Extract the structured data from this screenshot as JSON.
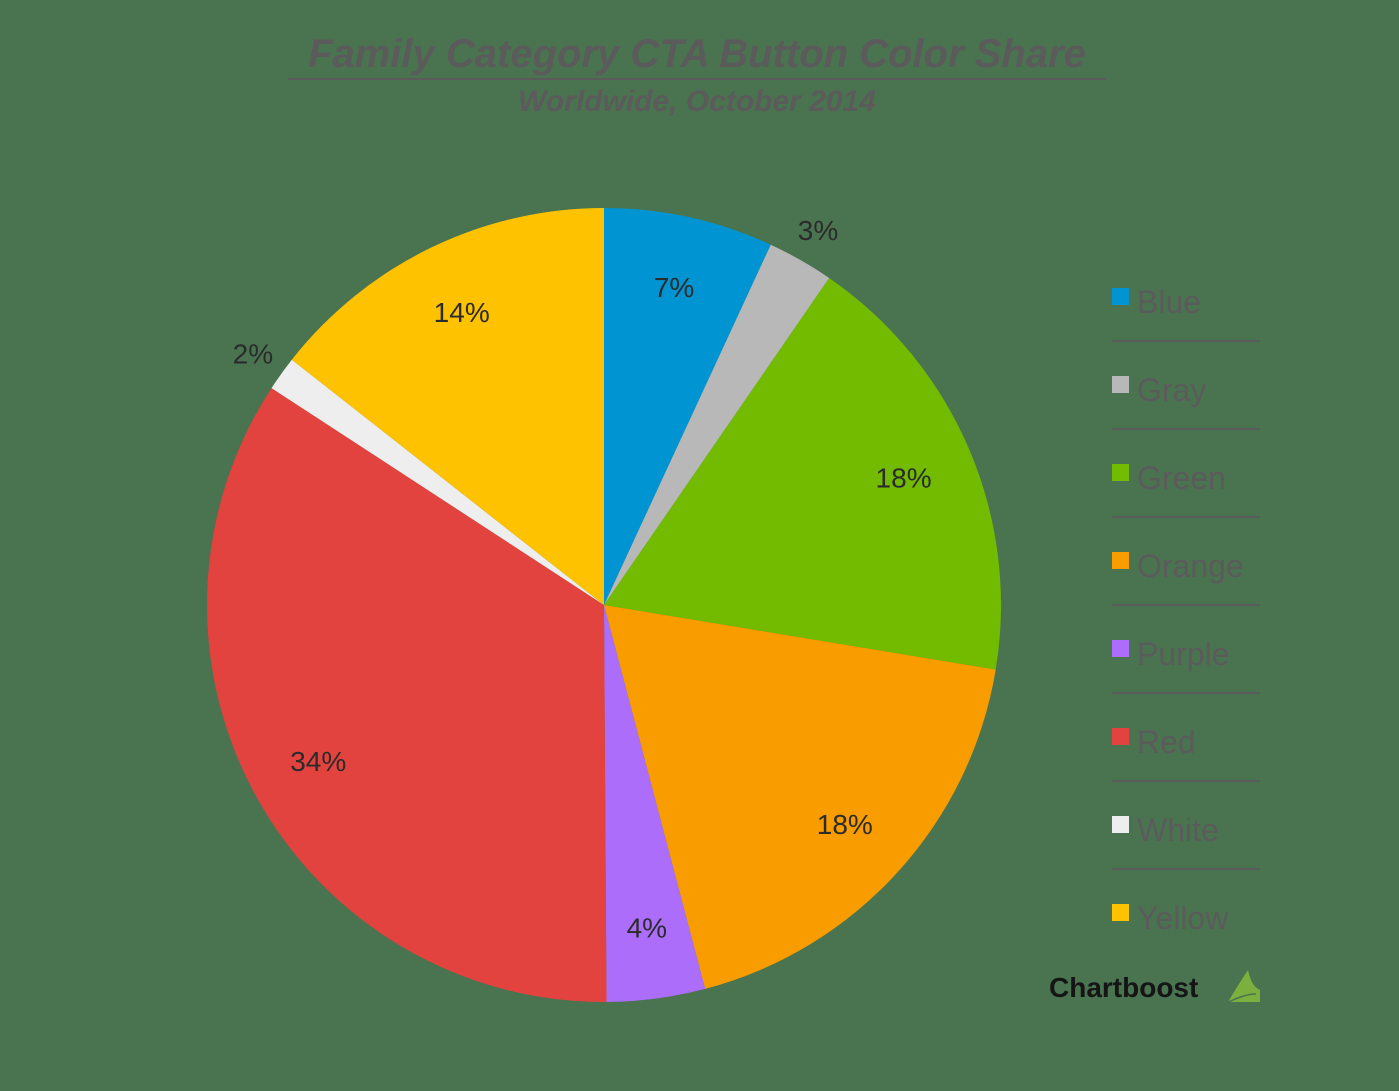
{
  "chart_data": {
    "type": "pie",
    "title": "Family Category CTA Button Color Share",
    "subtitle": "Worldwide, October 2014",
    "legend_position": "right",
    "categories": [
      "Blue",
      "Gray",
      "Green",
      "Orange",
      "Purple",
      "Red",
      "White",
      "Yellow"
    ],
    "values": [
      7,
      3,
      18,
      18,
      4,
      34,
      2,
      14
    ],
    "labels": [
      "7%",
      "3%",
      "18%",
      "18%",
      "4%",
      "34%",
      "2%",
      "14%"
    ],
    "colors": [
      "#0095d2",
      "#b8b8b8",
      "#72bb00",
      "#f89c00",
      "#ad6dfb",
      "#e3433e",
      "#eeeeee",
      "#fec200"
    ],
    "start_angle": "12 o'clock",
    "direction": "clockwise"
  },
  "header": {
    "title": "Family Category CTA Button Color Share",
    "subtitle": "Worldwide, October 2014"
  },
  "legend": {
    "items": [
      {
        "label": "Blue",
        "color": "#0095d2"
      },
      {
        "label": "Gray",
        "color": "#b8b8b8"
      },
      {
        "label": "Green",
        "color": "#72bb00"
      },
      {
        "label": "Orange",
        "color": "#f89c00"
      },
      {
        "label": "Purple",
        "color": "#ad6dfb"
      },
      {
        "label": "Red",
        "color": "#e3433e"
      },
      {
        "label": "White",
        "color": "#eeeeee"
      },
      {
        "label": "Yellow",
        "color": "#fec200"
      }
    ]
  },
  "brand": {
    "name": "Chartboost",
    "leaf_color": "#7bb03f"
  }
}
